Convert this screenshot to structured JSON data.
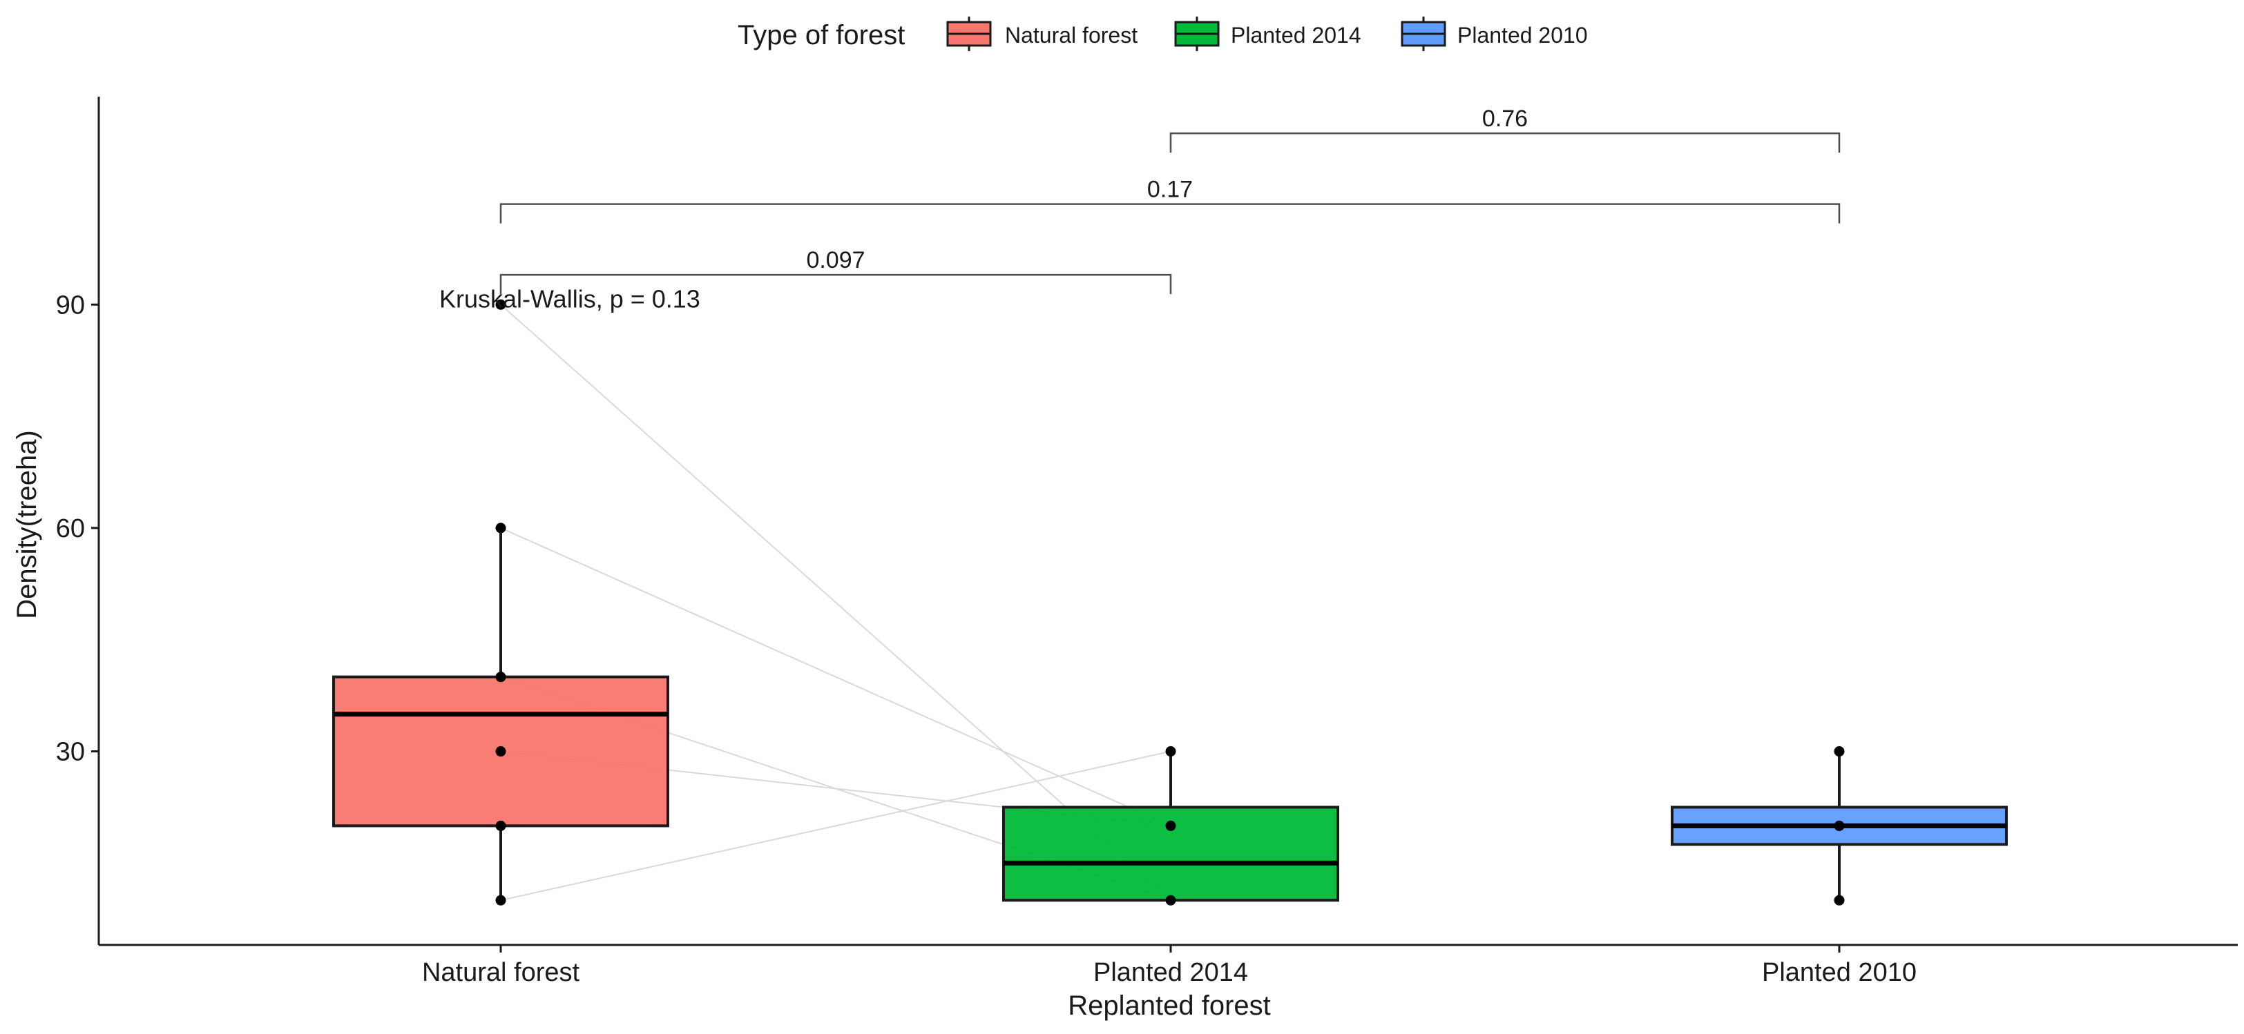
{
  "chart_data": {
    "type": "box",
    "xlabel": "Replanted forest",
    "ylabel": "Density(treeha)",
    "yticks": [
      30,
      60,
      90
    ],
    "ylim": [
      4,
      117
    ],
    "grid": false,
    "legend": {
      "title": "Type of forest",
      "position": "top",
      "entries": [
        {
          "label": "Natural forest",
          "color": "#F8766D"
        },
        {
          "label": "Planted 2014",
          "color": "#00BA38"
        },
        {
          "label": "Planted 2010",
          "color": "#619CFF"
        }
      ]
    },
    "categories": [
      "Natural forest",
      "Planted 2014",
      "Planted 2010"
    ],
    "boxes": [
      {
        "category": "Natural forest",
        "color": "#F8766D",
        "whisker_low": 10,
        "q1": 20,
        "median": 35,
        "q3": 40,
        "whisker_high": 60,
        "points": [
          90,
          60,
          40,
          30,
          20,
          10
        ]
      },
      {
        "category": "Planted 2014",
        "color": "#00BA38",
        "whisker_low": 10,
        "q1": 10,
        "median": 15,
        "q3": 22.5,
        "whisker_high": 30,
        "points": [
          30,
          20,
          10
        ]
      },
      {
        "category": "Planted 2010",
        "color": "#619CFF",
        "whisker_low": 10,
        "q1": 17.5,
        "median": 20,
        "q3": 22.5,
        "whisker_high": 30,
        "points": [
          30,
          20,
          10
        ]
      }
    ],
    "paired_lines": [
      {
        "from": 90,
        "to": 10
      },
      {
        "from": 60,
        "to": 20
      },
      {
        "from": 40,
        "to": 10
      },
      {
        "from": 30,
        "to": 20
      },
      {
        "from": 10,
        "to": 30
      }
    ],
    "comparisons": [
      {
        "from": "Natural forest",
        "to": "Planted 2014",
        "label": "0.097",
        "y": 94
      },
      {
        "from": "Natural forest",
        "to": "Planted 2010",
        "label": "0.17",
        "y": 103.5
      },
      {
        "from": "Planted 2014",
        "to": "Planted 2010",
        "label": "0.76",
        "y": 113
      }
    ],
    "annotation": {
      "text": "Kruskal-Wallis, p = 0.13",
      "y": 90
    }
  }
}
